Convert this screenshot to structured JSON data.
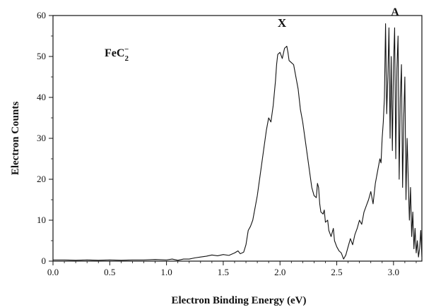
{
  "chart_data": {
    "type": "line",
    "title": "",
    "xlabel": "Electron Binding Energy (eV)",
    "ylabel": "Electron Counts",
    "xlim": [
      0.0,
      3.25
    ],
    "ylim": [
      0,
      60
    ],
    "xticks": [
      "0.0",
      "0.5",
      "1.0",
      "1.5",
      "2.0",
      "2.5",
      "3.0"
    ],
    "yticks": [
      "0",
      "10",
      "20",
      "30",
      "40",
      "50",
      "60"
    ],
    "grid": false,
    "annotations": {
      "species_base": "FeC",
      "species_sub": "2",
      "species_sup": "−",
      "peak_x_label": "X",
      "peak_a_label": "A"
    },
    "series": [
      {
        "color": "#111111",
        "points": [
          [
            0.0,
            0.3
          ],
          [
            0.1,
            0.3
          ],
          [
            0.2,
            0.2
          ],
          [
            0.3,
            0.3
          ],
          [
            0.4,
            0.2
          ],
          [
            0.5,
            0.3
          ],
          [
            0.6,
            0.2
          ],
          [
            0.7,
            0.3
          ],
          [
            0.8,
            0.3
          ],
          [
            0.9,
            0.4
          ],
          [
            1.0,
            0.3
          ],
          [
            1.05,
            0.5
          ],
          [
            1.1,
            0.2
          ],
          [
            1.15,
            0.5
          ],
          [
            1.2,
            0.5
          ],
          [
            1.25,
            0.8
          ],
          [
            1.3,
            1.0
          ],
          [
            1.35,
            1.2
          ],
          [
            1.4,
            1.5
          ],
          [
            1.45,
            1.3
          ],
          [
            1.5,
            1.6
          ],
          [
            1.55,
            1.4
          ],
          [
            1.6,
            2.0
          ],
          [
            1.63,
            2.5
          ],
          [
            1.65,
            1.8
          ],
          [
            1.68,
            2.2
          ],
          [
            1.7,
            4.0
          ],
          [
            1.72,
            7.5
          ],
          [
            1.74,
            8.5
          ],
          [
            1.76,
            10.0
          ],
          [
            1.78,
            13.0
          ],
          [
            1.8,
            16.0
          ],
          [
            1.82,
            20.0
          ],
          [
            1.84,
            24.0
          ],
          [
            1.86,
            28.0
          ],
          [
            1.88,
            32.0
          ],
          [
            1.9,
            35.0
          ],
          [
            1.92,
            34.0
          ],
          [
            1.94,
            38.0
          ],
          [
            1.96,
            44.0
          ],
          [
            1.97,
            48.0
          ],
          [
            1.98,
            50.5
          ],
          [
            2.0,
            51.0
          ],
          [
            2.02,
            49.5
          ],
          [
            2.04,
            52.0
          ],
          [
            2.06,
            52.5
          ],
          [
            2.07,
            51.0
          ],
          [
            2.08,
            49.0
          ],
          [
            2.1,
            48.5
          ],
          [
            2.12,
            48.0
          ],
          [
            2.14,
            45.0
          ],
          [
            2.16,
            42.0
          ],
          [
            2.18,
            37.0
          ],
          [
            2.2,
            34.0
          ],
          [
            2.22,
            30.0
          ],
          [
            2.24,
            26.0
          ],
          [
            2.26,
            22.0
          ],
          [
            2.28,
            18.0
          ],
          [
            2.3,
            16.0
          ],
          [
            2.32,
            15.5
          ],
          [
            2.33,
            19.0
          ],
          [
            2.34,
            18.0
          ],
          [
            2.35,
            14.0
          ],
          [
            2.36,
            12.0
          ],
          [
            2.38,
            11.5
          ],
          [
            2.39,
            12.5
          ],
          [
            2.4,
            9.5
          ],
          [
            2.42,
            10.0
          ],
          [
            2.43,
            7.5
          ],
          [
            2.45,
            6.0
          ],
          [
            2.47,
            8.0
          ],
          [
            2.48,
            5.0
          ],
          [
            2.5,
            3.5
          ],
          [
            2.52,
            2.5
          ],
          [
            2.54,
            2.0
          ],
          [
            2.56,
            0.5
          ],
          [
            2.58,
            1.5
          ],
          [
            2.6,
            3.5
          ],
          [
            2.62,
            5.5
          ],
          [
            2.64,
            4.0
          ],
          [
            2.66,
            6.5
          ],
          [
            2.68,
            8.0
          ],
          [
            2.7,
            10.0
          ],
          [
            2.72,
            9.0
          ],
          [
            2.74,
            12.0
          ],
          [
            2.76,
            13.5
          ],
          [
            2.78,
            15.0
          ],
          [
            2.8,
            17.0
          ],
          [
            2.82,
            14.0
          ],
          [
            2.84,
            19.0
          ],
          [
            2.86,
            22.0
          ],
          [
            2.88,
            25.0
          ],
          [
            2.89,
            24.0
          ],
          [
            2.9,
            30.0
          ],
          [
            2.91,
            34.0
          ],
          [
            2.92,
            40.0
          ],
          [
            2.93,
            58.0
          ],
          [
            2.94,
            36.0
          ],
          [
            2.95,
            45.0
          ],
          [
            2.96,
            57.0
          ],
          [
            2.97,
            30.0
          ],
          [
            2.98,
            50.0
          ],
          [
            2.99,
            27.0
          ],
          [
            3.0,
            48.0
          ],
          [
            3.01,
            57.0
          ],
          [
            3.02,
            25.0
          ],
          [
            3.03,
            47.0
          ],
          [
            3.04,
            55.0
          ],
          [
            3.05,
            20.0
          ],
          [
            3.06,
            40.0
          ],
          [
            3.07,
            48.0
          ],
          [
            3.08,
            18.0
          ],
          [
            3.09,
            35.0
          ],
          [
            3.1,
            45.0
          ],
          [
            3.11,
            15.0
          ],
          [
            3.12,
            30.0
          ],
          [
            3.13,
            20.0
          ],
          [
            3.14,
            10.0
          ],
          [
            3.15,
            18.0
          ],
          [
            3.16,
            6.0
          ],
          [
            3.17,
            12.0
          ],
          [
            3.18,
            3.0
          ],
          [
            3.19,
            8.0
          ],
          [
            3.2,
            2.0
          ],
          [
            3.21,
            5.0
          ],
          [
            3.22,
            1.0
          ],
          [
            3.23,
            3.0
          ],
          [
            3.24,
            7.5
          ],
          [
            3.25,
            1.0
          ]
        ]
      }
    ]
  }
}
